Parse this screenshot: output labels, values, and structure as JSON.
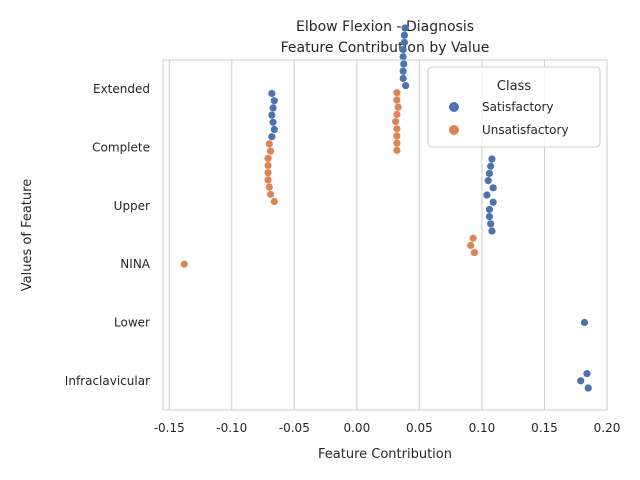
{
  "chart_data": {
    "type": "scatter",
    "title": "Elbow Flexion - Diagnosis",
    "subtitle": "Feature Contribution by Value",
    "xlabel": "Feature Contribution",
    "ylabel": "Values of Feature",
    "xlim": [
      -0.155,
      0.2
    ],
    "xticks": [
      "-0.15",
      "-0.10",
      "-0.05",
      "0.00",
      "0.05",
      "0.10",
      "0.15",
      "0.20"
    ],
    "categories": [
      "Extended",
      "Complete",
      "Upper",
      "NINA",
      "Lower",
      "Infraclavicular"
    ],
    "grid": true,
    "legend": {
      "title": "Class",
      "position": "top-right",
      "entries": [
        "Satisfactory",
        "Unsatisfactory"
      ]
    },
    "colors": {
      "Satisfactory": "#4c72b0",
      "Unsatisfactory": "#dd8452"
    },
    "series": [
      {
        "name": "Satisfactory",
        "points": [
          {
            "category": "Extended",
            "x": 0.0385
          },
          {
            "category": "Extended",
            "x": 0.038
          },
          {
            "category": "Extended",
            "x": 0.038
          },
          {
            "category": "Extended",
            "x": 0.037
          },
          {
            "category": "Extended",
            "x": 0.037
          },
          {
            "category": "Extended",
            "x": 0.0375
          },
          {
            "category": "Extended",
            "x": 0.037
          },
          {
            "category": "Extended",
            "x": 0.037
          },
          {
            "category": "Extended",
            "x": 0.039
          },
          {
            "category": "Complete",
            "x": -0.068
          },
          {
            "category": "Complete",
            "x": -0.066
          },
          {
            "category": "Complete",
            "x": -0.067
          },
          {
            "category": "Complete",
            "x": -0.068
          },
          {
            "category": "Complete",
            "x": -0.067
          },
          {
            "category": "Complete",
            "x": -0.066
          },
          {
            "category": "Complete",
            "x": -0.068
          },
          {
            "category": "Upper",
            "x": 0.108
          },
          {
            "category": "Upper",
            "x": 0.107
          },
          {
            "category": "Upper",
            "x": 0.106
          },
          {
            "category": "Upper",
            "x": 0.105
          },
          {
            "category": "Upper",
            "x": 0.109
          },
          {
            "category": "Upper",
            "x": 0.104
          },
          {
            "category": "Upper",
            "x": 0.109
          },
          {
            "category": "Upper",
            "x": 0.106
          },
          {
            "category": "Upper",
            "x": 0.106
          },
          {
            "category": "Upper",
            "x": 0.107
          },
          {
            "category": "Upper",
            "x": 0.108
          },
          {
            "category": "Lower",
            "x": 0.182
          },
          {
            "category": "Infraclavicular",
            "x": 0.184
          },
          {
            "category": "Infraclavicular",
            "x": 0.179
          },
          {
            "category": "Infraclavicular",
            "x": 0.185
          }
        ]
      },
      {
        "name": "Unsatisfactory",
        "points": [
          {
            "category": "Extended",
            "x": 0.032
          },
          {
            "category": "Extended",
            "x": 0.032
          },
          {
            "category": "Extended",
            "x": 0.033
          },
          {
            "category": "Extended",
            "x": 0.032
          },
          {
            "category": "Extended",
            "x": 0.031
          },
          {
            "category": "Extended",
            "x": 0.032
          },
          {
            "category": "Extended",
            "x": 0.032
          },
          {
            "category": "Extended",
            "x": 0.032
          },
          {
            "category": "Extended",
            "x": 0.032
          },
          {
            "category": "Complete",
            "x": -0.07
          },
          {
            "category": "Complete",
            "x": -0.069
          },
          {
            "category": "Complete",
            "x": -0.071
          },
          {
            "category": "Complete",
            "x": -0.071
          },
          {
            "category": "Complete",
            "x": -0.071
          },
          {
            "category": "Complete",
            "x": -0.071
          },
          {
            "category": "Complete",
            "x": -0.07
          },
          {
            "category": "Complete",
            "x": -0.069
          },
          {
            "category": "Complete",
            "x": -0.066
          },
          {
            "category": "Upper",
            "x": 0.093
          },
          {
            "category": "Upper",
            "x": 0.091
          },
          {
            "category": "Upper",
            "x": 0.094
          },
          {
            "category": "NINA",
            "x": -0.138
          }
        ]
      }
    ]
  }
}
